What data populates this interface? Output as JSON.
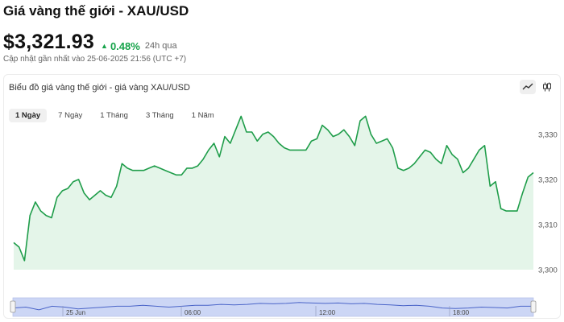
{
  "header": {
    "title": "Giá vàng thế giới - XAU/USD",
    "price": "$3,321.93",
    "change": "0.48%",
    "period": "24h qua",
    "updated": "Cập nhật gần nhất vào 25-06-2025 21:56 (UTC +7)"
  },
  "chart": {
    "title": "Biểu đồ giá vàng thế giới - giá vàng XAU/USD",
    "tabs": [
      {
        "label": "1 Ngày",
        "active": true
      },
      {
        "label": "7 Ngày",
        "active": false
      },
      {
        "label": "1 Tháng",
        "active": false
      },
      {
        "label": "3 Tháng",
        "active": false
      },
      {
        "label": "1 Năm",
        "active": false
      }
    ],
    "tools": [
      {
        "name": "line-chart-icon",
        "active": true
      },
      {
        "name": "candlestick-icon",
        "active": false
      }
    ]
  },
  "colors": {
    "line": "#1f9d4a",
    "area": "#e4f5e9",
    "change": "#16a34a",
    "navigator_fill": "#ccd6f5",
    "navigator_line": "#4a64c8"
  },
  "chart_data": {
    "type": "area",
    "title": "",
    "xlabel": "",
    "ylabel": "",
    "ylim": [
      3300,
      3333
    ],
    "y_ticks": [
      "3,300",
      "3,310",
      "3,320",
      "3,330"
    ],
    "y_tick_values": [
      3300,
      3310,
      3320,
      3330
    ],
    "navigator_labels": [
      "25 Jun",
      "06:00",
      "12:00",
      "18:00"
    ],
    "series": [
      {
        "values": [
          3306,
          3305,
          3302,
          3312,
          3315,
          3313,
          3312,
          3311.5,
          3316,
          3317.5,
          3318,
          3319.5,
          3320,
          3317,
          3315.5,
          3316.5,
          3317.5,
          3316.5,
          3316,
          3318.5,
          3323.5,
          3322.5,
          3322,
          3322,
          3322,
          3322.5,
          3323,
          3322.5,
          3322,
          3321.5,
          3321,
          3321,
          3322.5,
          3322.5,
          3323,
          3324.5,
          3326.5,
          3328,
          3325,
          3329.5,
          3328,
          3331,
          3334,
          3330.5,
          3330.5,
          3328.5,
          3330,
          3330.5,
          3329.5,
          3328,
          3327,
          3326.5,
          3326.5,
          3326.5,
          3326.5,
          3328.5,
          3329,
          3332,
          3331,
          3329.5,
          3330,
          3331,
          3329.5,
          3327.5,
          3333,
          3334,
          3330,
          3328,
          3328.5,
          3329,
          3327,
          3322.5,
          3322,
          3322.5,
          3323.5,
          3325,
          3326.5,
          3326,
          3324.5,
          3323.5,
          3327.5,
          3325.5,
          3324.5,
          3321.5,
          3322.5,
          3324.5,
          3326.5,
          3327.5,
          3318.5,
          3319.5,
          3313.5,
          3313,
          3313,
          3313,
          3317,
          3320.5,
          3321.5
        ]
      }
    ],
    "navigator": [
      0.45,
      0.5,
      0.35,
      0.55,
      0.5,
      0.4,
      0.45,
      0.5,
      0.55,
      0.55,
      0.6,
      0.55,
      0.5,
      0.55,
      0.6,
      0.6,
      0.65,
      0.62,
      0.65,
      0.7,
      0.68,
      0.7,
      0.75,
      0.72,
      0.7,
      0.72,
      0.68,
      0.7,
      0.65,
      0.62,
      0.58,
      0.6,
      0.55,
      0.45,
      0.42,
      0.45,
      0.5,
      0.48,
      0.45,
      0.55,
      0.55
    ]
  }
}
